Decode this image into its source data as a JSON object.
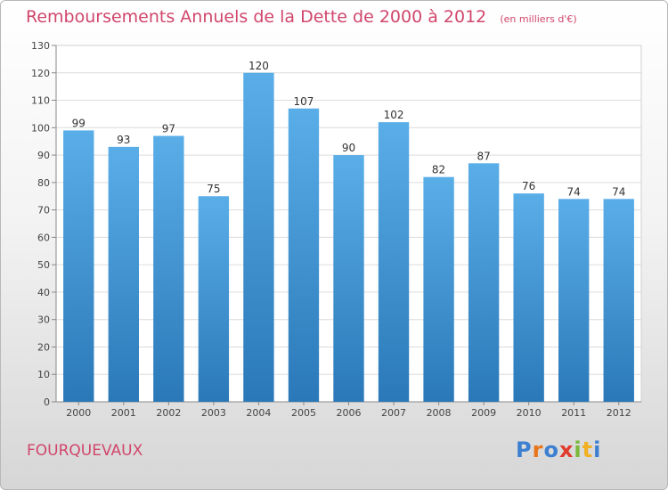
{
  "header": {
    "title": "Remboursements Annuels de la Dette de 2000 à 2012",
    "unit": "(en milliers d'€)"
  },
  "footer": {
    "commune": "FOURQUEVAUX",
    "logo_letters": [
      {
        "char": "P",
        "color": "#3d7fd1"
      },
      {
        "char": "r",
        "color": "#e8751a"
      },
      {
        "char": "o",
        "color": "#3d7fd1"
      },
      {
        "char": "x",
        "color": "#e03c2e"
      },
      {
        "char": "i",
        "color": "#79b83a"
      },
      {
        "char": "t",
        "color": "#f0b020"
      },
      {
        "char": "i",
        "color": "#3d7fd1"
      }
    ]
  },
  "chart_data": {
    "type": "bar",
    "categories": [
      "2000",
      "2001",
      "2002",
      "2003",
      "2004",
      "2005",
      "2006",
      "2007",
      "2008",
      "2009",
      "2010",
      "2011",
      "2012"
    ],
    "values": [
      99,
      93,
      97,
      75,
      120,
      107,
      90,
      102,
      82,
      87,
      76,
      74,
      74
    ],
    "ylim": [
      0,
      130
    ],
    "yticks": [
      0,
      10,
      20,
      30,
      40,
      50,
      60,
      70,
      80,
      90,
      100,
      110,
      120,
      130
    ],
    "grid": true,
    "bar_color_top": "#5aaee8",
    "bar_color_bottom": "#2a78b8",
    "legend": "none"
  }
}
